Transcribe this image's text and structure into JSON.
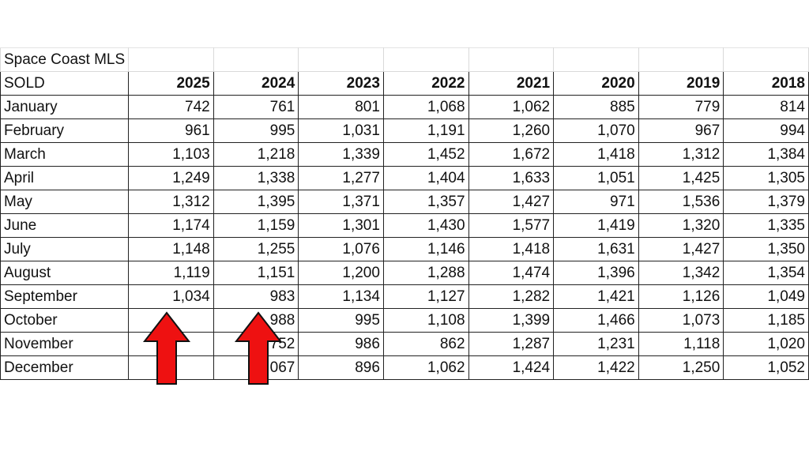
{
  "title": "Space Coast MLS",
  "corner_label": "SOLD",
  "years": [
    "2025",
    "2024",
    "2023",
    "2022",
    "2021",
    "2020",
    "2019",
    "2018"
  ],
  "rows": [
    {
      "month": "January",
      "values": [
        "742",
        "761",
        "801",
        "1,068",
        "1,062",
        "885",
        "779",
        "814"
      ]
    },
    {
      "month": "February",
      "values": [
        "961",
        "995",
        "1,031",
        "1,191",
        "1,260",
        "1,070",
        "967",
        "994"
      ]
    },
    {
      "month": "March",
      "values": [
        "1,103",
        "1,218",
        "1,339",
        "1,452",
        "1,672",
        "1,418",
        "1,312",
        "1,384"
      ]
    },
    {
      "month": "April",
      "values": [
        "1,249",
        "1,338",
        "1,277",
        "1,404",
        "1,633",
        "1,051",
        "1,425",
        "1,305"
      ]
    },
    {
      "month": "May",
      "values": [
        "1,312",
        "1,395",
        "1,371",
        "1,357",
        "1,427",
        "971",
        "1,536",
        "1,379"
      ]
    },
    {
      "month": "June",
      "values": [
        "1,174",
        "1,159",
        "1,301",
        "1,430",
        "1,577",
        "1,419",
        "1,320",
        "1,335"
      ]
    },
    {
      "month": "July",
      "values": [
        "1,148",
        "1,255",
        "1,076",
        "1,146",
        "1,418",
        "1,631",
        "1,427",
        "1,350"
      ]
    },
    {
      "month": "August",
      "values": [
        "1,119",
        "1,151",
        "1,200",
        "1,288",
        "1,474",
        "1,396",
        "1,342",
        "1,354"
      ]
    },
    {
      "month": "September",
      "values": [
        "1,034",
        "983",
        "1,134",
        "1,127",
        "1,282",
        "1,421",
        "1,126",
        "1,049"
      ]
    },
    {
      "month": "October",
      "values": [
        "",
        "988",
        "995",
        "1,108",
        "1,399",
        "1,466",
        "1,073",
        "1,185"
      ]
    },
    {
      "month": "November",
      "values": [
        "",
        "752",
        "986",
        "862",
        "1,287",
        "1,231",
        "1,118",
        "1,020"
      ]
    },
    {
      "month": "December",
      "values": [
        "",
        "1,067",
        "896",
        "1,062",
        "1,424",
        "1,422",
        "1,250",
        "1,052"
      ]
    }
  ],
  "colors": {
    "arrow_fill": "#ee1111",
    "arrow_stroke": "#111111",
    "grid": "#222222"
  },
  "annotations": [
    {
      "type": "arrow-up",
      "points_to": "2025 September"
    },
    {
      "type": "arrow-up",
      "points_to": "2024 September"
    }
  ]
}
